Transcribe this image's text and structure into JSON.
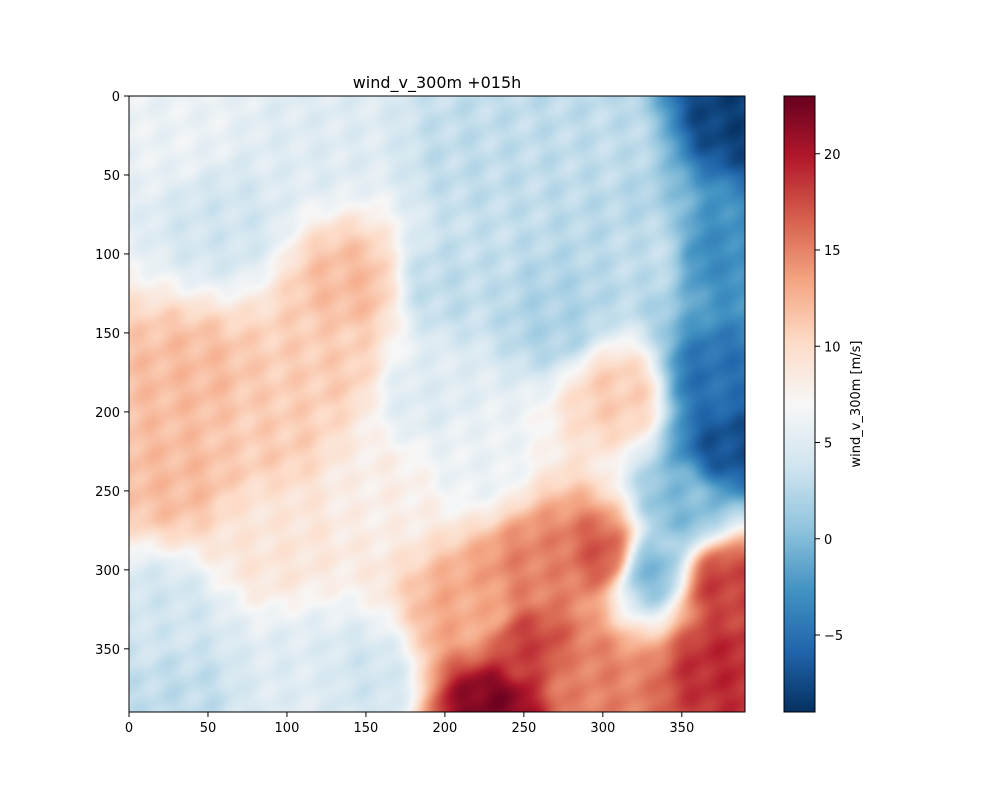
{
  "chart_data": {
    "type": "heatmap",
    "title": "wind_v_300m +015h",
    "xlabel": "",
    "ylabel": "",
    "grid_size": [
      390,
      390
    ],
    "xlim": [
      0,
      390
    ],
    "ylim": [
      390,
      0
    ],
    "x_ticks": [
      0,
      50,
      100,
      150,
      200,
      250,
      300,
      350
    ],
    "y_ticks": [
      0,
      50,
      100,
      150,
      200,
      250,
      300,
      350
    ],
    "colorbar": {
      "label": "wind_v_300m [m/s]",
      "colormap": "RdBu_r",
      "range": [
        -9,
        23
      ],
      "ticks": [
        -5,
        0,
        5,
        10,
        15,
        20
      ],
      "tick_labels": [
        "−5",
        "0",
        "5",
        "10",
        "15",
        "20"
      ]
    },
    "approximate_field": [
      {
        "x": 30,
        "y": 20,
        "v": 6
      },
      {
        "x": 120,
        "y": 30,
        "v": 5
      },
      {
        "x": 220,
        "y": 40,
        "v": 3
      },
      {
        "x": 300,
        "y": 30,
        "v": 3
      },
      {
        "x": 385,
        "y": 10,
        "v": -8
      },
      {
        "x": 370,
        "y": 100,
        "v": -3
      },
      {
        "x": 370,
        "y": 180,
        "v": -5
      },
      {
        "x": 380,
        "y": 220,
        "v": -7
      },
      {
        "x": 350,
        "y": 260,
        "v": 0
      },
      {
        "x": 330,
        "y": 300,
        "v": 0
      },
      {
        "x": 270,
        "y": 140,
        "v": 2
      },
      {
        "x": 200,
        "y": 120,
        "v": 3
      },
      {
        "x": 140,
        "y": 120,
        "v": 12
      },
      {
        "x": 125,
        "y": 170,
        "v": 11
      },
      {
        "x": 40,
        "y": 180,
        "v": 12
      },
      {
        "x": 30,
        "y": 240,
        "v": 12
      },
      {
        "x": 90,
        "y": 280,
        "v": 9
      },
      {
        "x": 160,
        "y": 250,
        "v": 8
      },
      {
        "x": 220,
        "y": 230,
        "v": 6
      },
      {
        "x": 310,
        "y": 190,
        "v": 11
      },
      {
        "x": 260,
        "y": 300,
        "v": 15
      },
      {
        "x": 300,
        "y": 290,
        "v": 17
      },
      {
        "x": 220,
        "y": 330,
        "v": 13
      },
      {
        "x": 250,
        "y": 350,
        "v": 18
      },
      {
        "x": 230,
        "y": 385,
        "v": 22
      },
      {
        "x": 290,
        "y": 370,
        "v": 15
      },
      {
        "x": 375,
        "y": 310,
        "v": 18
      },
      {
        "x": 375,
        "y": 360,
        "v": 19
      },
      {
        "x": 20,
        "y": 330,
        "v": 4
      },
      {
        "x": 30,
        "y": 380,
        "v": 3
      },
      {
        "x": 110,
        "y": 370,
        "v": 5
      },
      {
        "x": 150,
        "y": 370,
        "v": 4
      },
      {
        "x": 60,
        "y": 80,
        "v": 4
      },
      {
        "x": 190,
        "y": 190,
        "v": 5
      },
      {
        "x": 330,
        "y": 100,
        "v": 3
      },
      {
        "x": 90,
        "y": 210,
        "v": 11
      }
    ]
  }
}
